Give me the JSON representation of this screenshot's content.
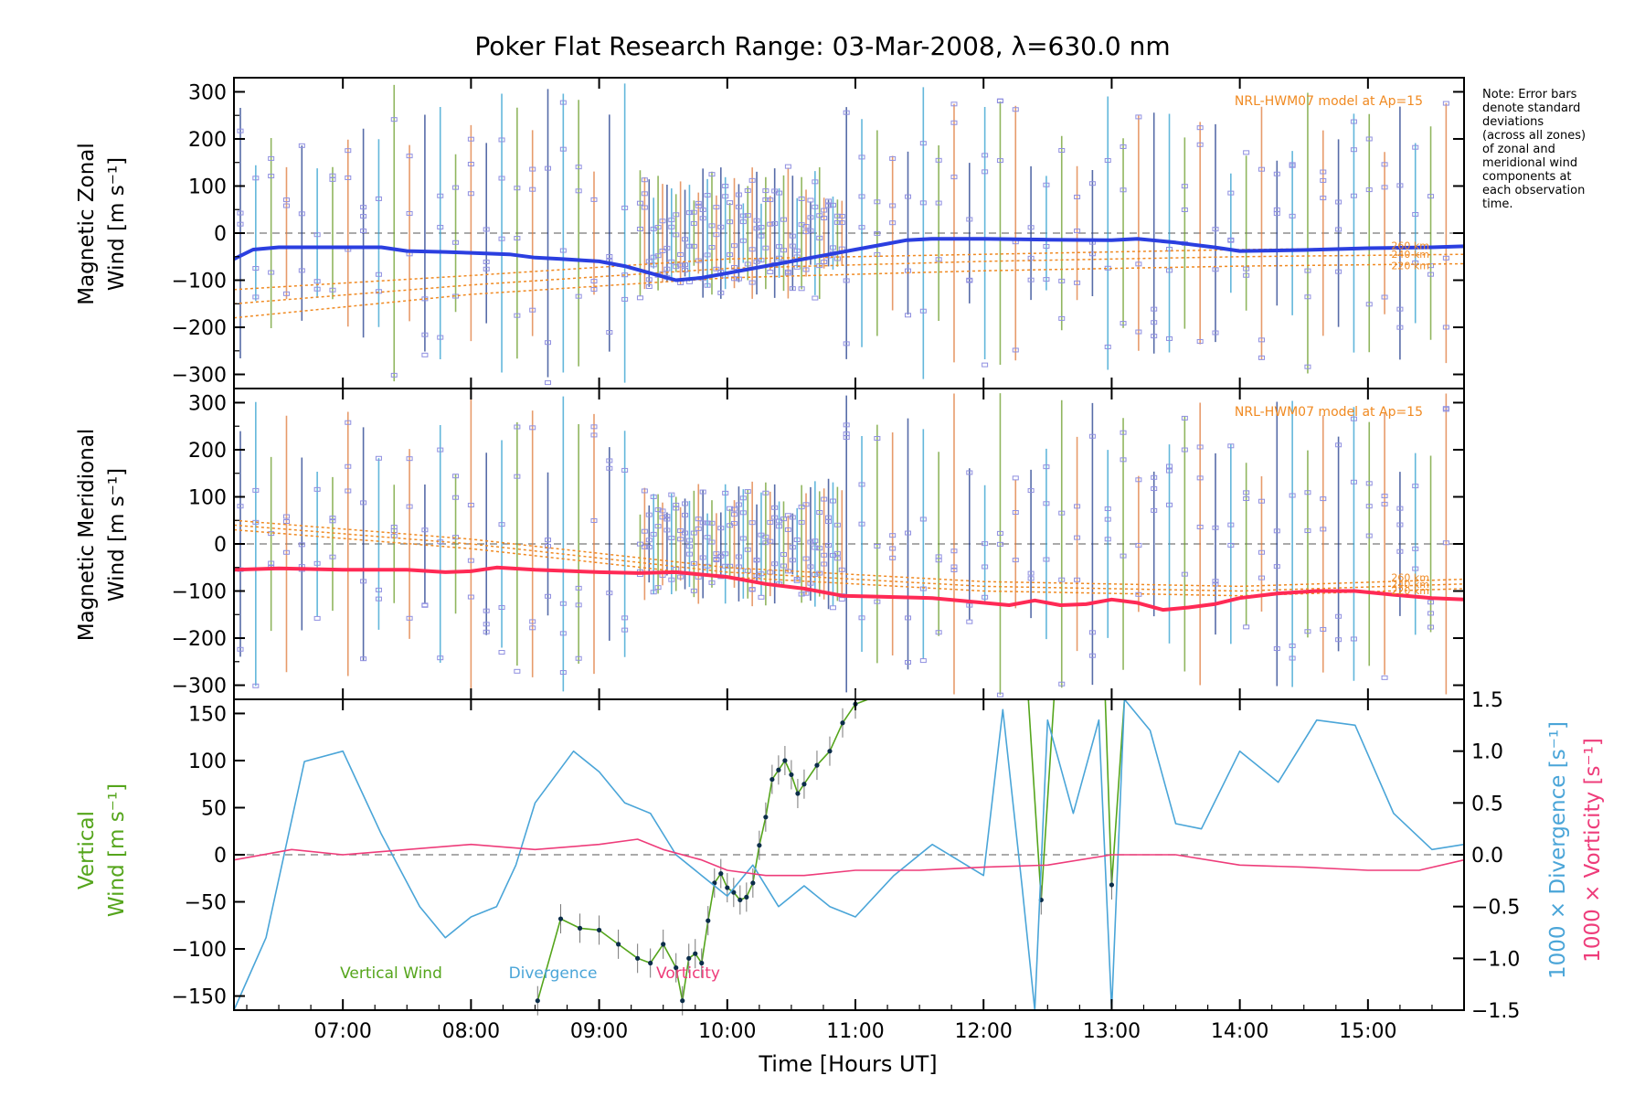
{
  "chart_data": [
    {
      "type": "line",
      "title": "Poker Flat Research Range: 03-Mar-2008, λ=630.0 nm",
      "ylabel_line1": "Magnetic Zonal",
      "ylabel_line2": "Wind [m s⁻¹]",
      "ylim": [
        -330,
        330
      ],
      "yticks": [
        "300",
        "200",
        "100",
        "0",
        "−100",
        "−200",
        "−300"
      ],
      "xlim": [
        6.15,
        15.75
      ],
      "model_label": "NRL-HWM07 model at Ap=15",
      "model_altitudes": [
        "260 km",
        "240 km",
        "220 km"
      ],
      "note": [
        "Note: Error bars",
        "denote standard",
        "deviations",
        "(across all zones)",
        "of zonal and",
        "meridional wind",
        "components at",
        "each observation",
        "time."
      ],
      "series": [
        {
          "role": "mean wind",
          "color": "#2b3fe0",
          "x": [
            6.15,
            6.3,
            6.5,
            6.7,
            7.0,
            7.3,
            7.5,
            7.8,
            8.0,
            8.3,
            8.5,
            8.7,
            9.0,
            9.2,
            9.4,
            9.6,
            9.8,
            10.0,
            10.2,
            10.4,
            10.6,
            10.8,
            11.0,
            11.2,
            11.4,
            11.6,
            12.0,
            12.5,
            13.0,
            13.2,
            13.5,
            13.8,
            14.0,
            14.5,
            15.0,
            15.5,
            15.75
          ],
          "values": [
            -55,
            -35,
            -30,
            -30,
            -30,
            -30,
            -38,
            -40,
            -42,
            -45,
            -52,
            -55,
            -60,
            -70,
            -85,
            -100,
            -95,
            -85,
            -75,
            -65,
            -55,
            -45,
            -35,
            -25,
            -15,
            -12,
            -12,
            -14,
            -15,
            -12,
            -20,
            -30,
            -38,
            -36,
            -32,
            -30,
            -28
          ]
        },
        {
          "role": "model 260 km",
          "color": "#f08a22",
          "x": [
            6.15,
            8.0,
            10.0,
            12.0,
            14.0,
            15.75
          ],
          "values": [
            -120,
            -90,
            -55,
            -45,
            -35,
            -30
          ]
        },
        {
          "role": "model 240 km",
          "color": "#f08a22",
          "x": [
            6.15,
            8.0,
            10.0,
            12.0,
            14.0,
            15.75
          ],
          "values": [
            -150,
            -110,
            -75,
            -60,
            -50,
            -45
          ]
        },
        {
          "role": "model 220 km",
          "color": "#f08a22",
          "x": [
            6.15,
            8.0,
            10.0,
            12.0,
            14.0,
            15.75
          ],
          "values": [
            -180,
            -130,
            -95,
            -80,
            -70,
            -65
          ]
        }
      ]
    },
    {
      "type": "line",
      "ylabel_line1": "Magnetic Meridional",
      "ylabel_line2": "Wind [m s⁻¹]",
      "ylim": [
        -330,
        330
      ],
      "yticks": [
        "300",
        "200",
        "100",
        "0",
        "−100",
        "−200",
        "−300"
      ],
      "xlim": [
        6.15,
        15.75
      ],
      "model_label": "NRL-HWM07 model at Ap=15",
      "model_altitudes": [
        "260 km",
        "240 km",
        "220 km"
      ],
      "series": [
        {
          "role": "mean wind",
          "color": "#ff2a55",
          "x": [
            6.15,
            6.5,
            7.0,
            7.5,
            7.8,
            8.0,
            8.2,
            8.5,
            9.0,
            9.3,
            9.6,
            9.8,
            10.0,
            10.3,
            10.6,
            10.9,
            11.2,
            11.6,
            12.0,
            12.2,
            12.4,
            12.6,
            12.8,
            13.0,
            13.2,
            13.4,
            13.6,
            13.8,
            14.0,
            14.3,
            14.6,
            14.9,
            15.2,
            15.5,
            15.75
          ],
          "values": [
            -55,
            -52,
            -55,
            -55,
            -60,
            -58,
            -50,
            -55,
            -60,
            -62,
            -60,
            -65,
            -70,
            -85,
            -95,
            -110,
            -112,
            -115,
            -125,
            -130,
            -120,
            -130,
            -128,
            -118,
            -125,
            -140,
            -135,
            -128,
            -115,
            -105,
            -100,
            -100,
            -108,
            -115,
            -118
          ]
        },
        {
          "role": "model 260 km",
          "color": "#f08a22",
          "x": [
            6.15,
            8.0,
            10.0,
            12.0,
            14.0,
            15.75
          ],
          "values": [
            50,
            10,
            -50,
            -80,
            -90,
            -75
          ]
        },
        {
          "role": "model 240 km",
          "color": "#f08a22",
          "x": [
            6.15,
            8.0,
            10.0,
            12.0,
            14.0,
            15.75
          ],
          "values": [
            40,
            0,
            -60,
            -90,
            -100,
            -85
          ]
        },
        {
          "role": "model 220 km",
          "color": "#f08a22",
          "x": [
            6.15,
            8.0,
            10.0,
            12.0,
            14.0,
            15.75
          ],
          "values": [
            30,
            -10,
            -70,
            -100,
            -110,
            -95
          ]
        }
      ]
    },
    {
      "type": "line",
      "xlabel": "Time [Hours UT]",
      "xticks": [
        "07:00",
        "08:00",
        "09:00",
        "10:00",
        "11:00",
        "12:00",
        "13:00",
        "14:00",
        "15:00"
      ],
      "xtick_values": [
        7,
        8,
        9,
        10,
        11,
        12,
        13,
        14,
        15
      ],
      "xlim": [
        6.15,
        15.75
      ],
      "ylabel_left_line1": "Vertical",
      "ylabel_left_line2": "Wind [m s⁻¹]",
      "ylim_left": [
        -165,
        165
      ],
      "yticks_left": [
        "150",
        "100",
        "50",
        "0",
        "−50",
        "−100",
        "−150"
      ],
      "ylabel_right_div": "1000 × Divergence [s⁻¹]",
      "ylabel_right_vort": "1000 × Vorticity [s⁻¹]",
      "ylim_right": [
        -1.5,
        1.5
      ],
      "yticks_right": [
        "1.5",
        "1.0",
        "0.5",
        "0.0",
        "−0.5",
        "−1.0",
        "−1.5"
      ],
      "series": [
        {
          "name": "Vertical Wind",
          "axis": "left",
          "color": "#55a51c",
          "x": [
            8.52,
            8.7,
            8.85,
            9.0,
            9.15,
            9.3,
            9.4,
            9.5,
            9.6,
            9.65,
            9.7,
            9.75,
            9.8,
            9.85,
            9.9,
            9.95,
            10.0,
            10.05,
            10.1,
            10.15,
            10.2,
            10.25,
            10.3,
            10.35,
            10.4,
            10.45,
            10.5,
            10.55,
            10.6,
            10.7,
            10.8,
            10.9,
            11.0,
            11.1
          ],
          "values": [
            -155,
            -68,
            -78,
            -80,
            -95,
            -110,
            -115,
            -95,
            -120,
            -155,
            -110,
            -105,
            -115,
            -70,
            -30,
            -20,
            -35,
            -40,
            -48,
            -45,
            -30,
            10,
            40,
            80,
            90,
            100,
            85,
            65,
            75,
            95,
            110,
            140,
            160,
            165
          ]
        },
        {
          "name": "Vertical Wind (later)",
          "axis": "left",
          "color": "#55a51c",
          "x": [
            12.35,
            12.45,
            12.55,
            12.95,
            13.0,
            13.1
          ],
          "values": [
            165,
            -48,
            165,
            165,
            -32,
            165
          ]
        },
        {
          "name": "Divergence",
          "axis": "right",
          "color": "#4aa5d8",
          "x": [
            6.15,
            6.4,
            6.7,
            7.0,
            7.3,
            7.6,
            7.8,
            8.0,
            8.2,
            8.35,
            8.5,
            8.8,
            9.0,
            9.2,
            9.4,
            9.6,
            9.8,
            10.0,
            10.2,
            10.4,
            10.6,
            10.8,
            11.0,
            11.3,
            11.6,
            12.0,
            12.15,
            12.3,
            12.4,
            12.5,
            12.7,
            12.9,
            13.0,
            13.1,
            13.3,
            13.5,
            13.7,
            14.0,
            14.3,
            14.6,
            14.9,
            15.2,
            15.5,
            15.75
          ],
          "values": [
            -1.55,
            -0.8,
            0.9,
            1.0,
            0.2,
            -0.5,
            -0.8,
            -0.6,
            -0.5,
            -0.1,
            0.5,
            1.0,
            0.8,
            0.5,
            0.4,
            0.0,
            -0.2,
            -0.4,
            -0.1,
            -0.5,
            -0.3,
            -0.5,
            -0.6,
            -0.2,
            0.1,
            -0.2,
            1.4,
            -0.3,
            -1.6,
            1.3,
            0.4,
            1.3,
            -1.6,
            1.5,
            1.2,
            0.3,
            0.25,
            1.0,
            0.7,
            1.3,
            1.25,
            0.4,
            0.05,
            0.1
          ]
        },
        {
          "name": "Vorticity",
          "axis": "right",
          "color": "#ee3c7a",
          "x": [
            6.15,
            6.6,
            7.0,
            7.5,
            8.0,
            8.5,
            9.0,
            9.3,
            9.5,
            9.8,
            10.0,
            10.3,
            10.6,
            11.0,
            11.5,
            12.0,
            12.5,
            13.0,
            13.5,
            14.0,
            14.5,
            15.0,
            15.4,
            15.75
          ],
          "values": [
            -0.05,
            0.05,
            0.0,
            0.05,
            0.1,
            0.05,
            0.1,
            0.15,
            0.05,
            -0.05,
            -0.15,
            -0.2,
            -0.2,
            -0.15,
            -0.15,
            -0.12,
            -0.1,
            0.0,
            0.0,
            -0.1,
            -0.12,
            -0.15,
            -0.15,
            -0.05
          ]
        }
      ]
    }
  ]
}
